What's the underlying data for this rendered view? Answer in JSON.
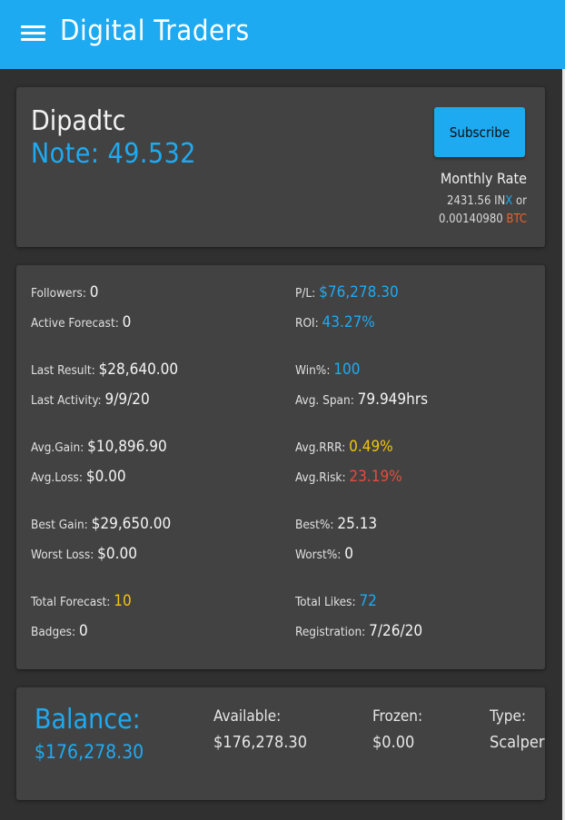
{
  "app": {
    "title": "Digital Traders"
  },
  "profile": {
    "name": "Dipadtc",
    "note": "Note: 49.532",
    "subscribe_label": "Subscribe",
    "monthly_rate_label": "Monthly Rate",
    "rate_inx_amount": "2431.56 IN",
    "rate_inx_x": "X",
    "rate_or": " or",
    "rate_btc_amount": "0.00140980 ",
    "rate_btc_label": "BTC"
  },
  "stats": {
    "followers": {
      "label": "Followers: ",
      "value": "0"
    },
    "pl": {
      "label": "P/L: ",
      "value": "$76,278.30"
    },
    "active_forecast": {
      "label": "Active Forecast: ",
      "value": "0"
    },
    "roi": {
      "label": "ROI: ",
      "value": "43.27%"
    },
    "last_result": {
      "label": "Last Result: ",
      "value": "$28,640.00"
    },
    "win_pct": {
      "label": "Win%: ",
      "value": "100"
    },
    "last_activity": {
      "label": "Last Activity: ",
      "value": "9/9/20"
    },
    "avg_span": {
      "label": "Avg. Span: ",
      "value": "79.949hrs"
    },
    "avg_gain": {
      "label": "Avg.Gain: ",
      "value": "$10,896.90"
    },
    "avg_rrr": {
      "label": "Avg.RRR: ",
      "value": "0.49%"
    },
    "avg_loss": {
      "label": "Avg.Loss: ",
      "value": "$0.00"
    },
    "avg_risk": {
      "label": "Avg.Risk: ",
      "value": "23.19%"
    },
    "best_gain": {
      "label": "Best Gain: ",
      "value": "$29,650.00"
    },
    "best_pct": {
      "label": "Best%: ",
      "value": "25.13"
    },
    "worst_loss": {
      "label": "Worst Loss: ",
      "value": "$0.00"
    },
    "worst_pct": {
      "label": "Worst%: ",
      "value": "0"
    },
    "total_forecast": {
      "label": "Total Forecast: ",
      "value": "10"
    },
    "total_likes": {
      "label": "Total Likes: ",
      "value": "72"
    },
    "badges": {
      "label": "Badges: ",
      "value": "0"
    },
    "registration": {
      "label": "Registration: ",
      "value": "7/26/20"
    }
  },
  "balance": {
    "label": "Balance:",
    "value": "$176,278.30",
    "available_label": "Available:",
    "available_value": "$176,278.30",
    "frozen_label": "Frozen:",
    "frozen_value": "$0.00",
    "type_label": "Type:",
    "type_value": "Scalper"
  },
  "colors": {
    "primary": "#1eaaf1",
    "background": "#303030",
    "card": "#424242",
    "warning": "#f1c40f",
    "danger": "#e74c3c"
  }
}
